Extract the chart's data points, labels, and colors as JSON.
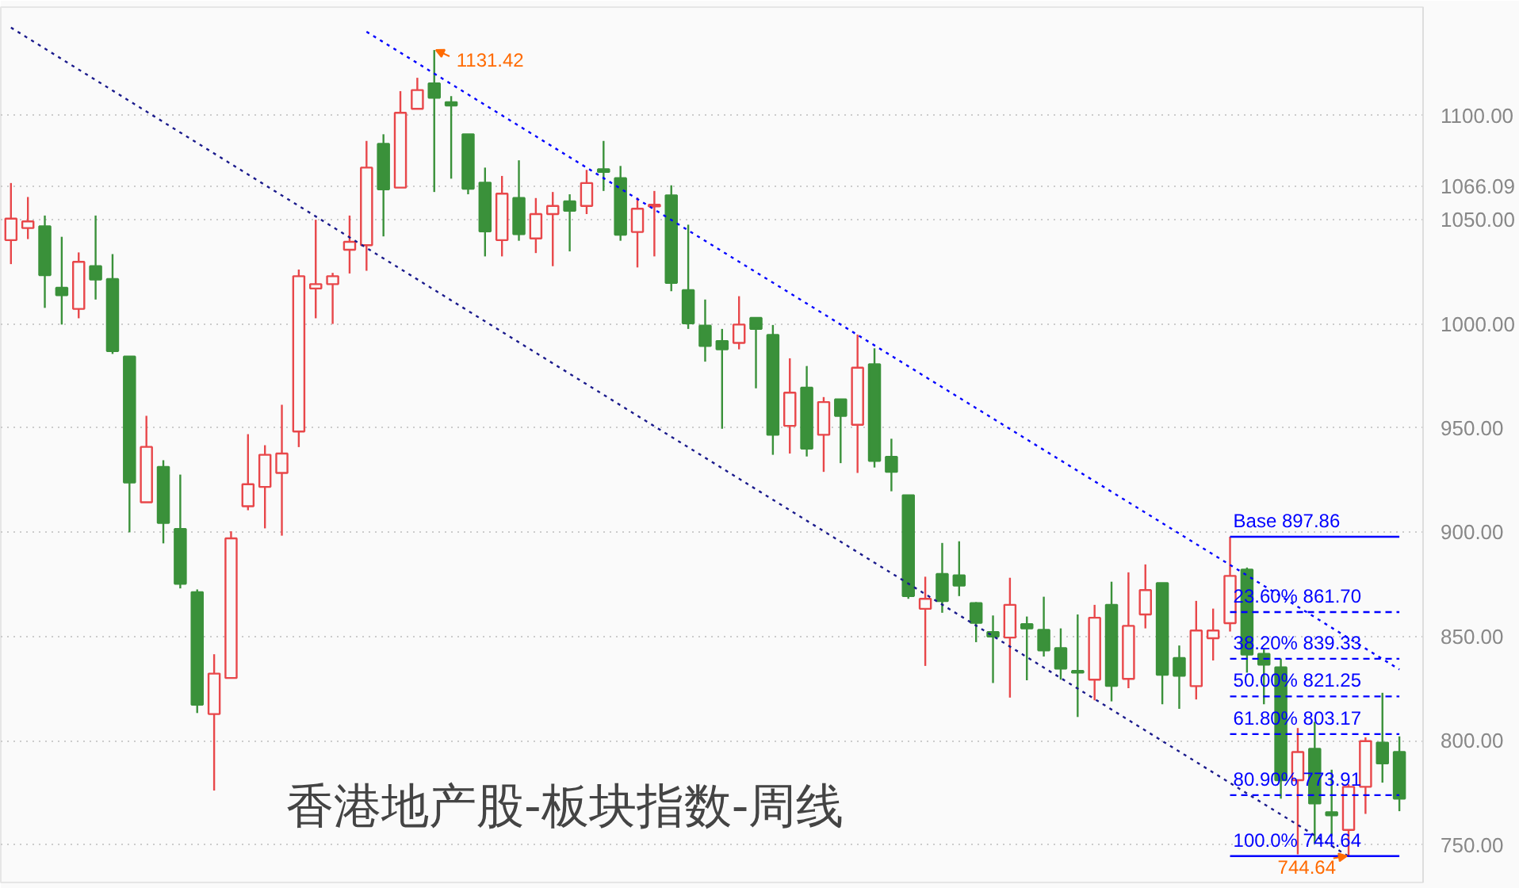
{
  "chart_data": {
    "type": "candlestick",
    "title": "香港地产股-板块指数-周线",
    "categories": [
      null,
      null,
      null,
      null,
      null,
      null,
      null,
      null,
      null,
      null,
      null,
      null,
      null,
      null,
      null,
      null,
      null,
      null,
      null,
      null,
      null,
      null,
      null,
      null,
      null,
      null,
      null,
      null,
      null,
      null,
      null,
      null,
      null,
      null,
      null,
      null,
      null,
      null,
      null,
      null,
      null,
      null,
      null,
      null,
      null,
      null,
      null,
      null,
      null,
      null,
      null,
      null,
      null,
      null,
      null,
      null,
      null,
      null,
      null,
      null,
      null,
      null,
      null,
      null,
      null,
      null,
      null,
      null,
      null,
      null,
      null,
      null,
      null,
      null,
      null,
      null,
      null,
      null,
      null,
      null,
      null,
      null,
      null
    ],
    "value_labels": [
      null,
      null,
      null,
      null,
      null,
      null,
      null,
      null,
      null,
      null,
      null,
      null,
      null,
      null,
      null,
      null,
      null,
      null,
      null,
      null,
      null,
      null,
      null,
      null,
      null,
      "1131.42",
      null,
      null,
      null,
      null,
      null,
      null,
      null,
      null,
      null,
      null,
      null,
      null,
      null,
      null,
      null,
      null,
      null,
      null,
      null,
      null,
      null,
      null,
      null,
      null,
      null,
      null,
      null,
      null,
      null,
      null,
      null,
      null,
      null,
      null,
      null,
      null,
      null,
      null,
      null,
      null,
      null,
      null,
      null,
      null,
      null,
      null,
      null,
      null,
      null,
      null,
      null,
      null,
      null,
      "744.64",
      null,
      null,
      null
    ],
    "ohlc": [
      [
        1040.2,
        1067.6,
        1028.7,
        1050.5
      ],
      [
        1046,
        1060.9,
        1040.7,
        1049.2
      ],
      [
        1046.8,
        1052,
        1007.7,
        1023.4
      ],
      [
        1017.3,
        1041.8,
        999.7,
        1013.8
      ],
      [
        1007.2,
        1034.3,
        1002.7,
        1029.8
      ],
      [
        1027.7,
        1052,
        1011.7,
        1021.3
      ],
      [
        1021.5,
        1033.5,
        985.6,
        987
      ],
      [
        984.3,
        984.3,
        900,
        923.9
      ],
      [
        914.4,
        955.9,
        914.4,
        941
      ],
      [
        931.4,
        934.6,
        894.7,
        904.5
      ],
      [
        901.6,
        927.7,
        873.1,
        875.3
      ],
      [
        871.3,
        872.6,
        813.3,
        817.3
      ],
      [
        812.8,
        841.5,
        776.1,
        832.2
      ],
      [
        830.1,
        900.5,
        830.1,
        897.1
      ],
      [
        912.5,
        947.1,
        910.6,
        923.1
      ],
      [
        921.8,
        941.8,
        901.9,
        937.2
      ],
      [
        928.5,
        961.2,
        898.4,
        937.8
      ],
      [
        948.4,
        1026.1,
        940.9,
        1022.9
      ],
      [
        1017,
        1050,
        1002.7,
        1019.1
      ],
      [
        1019.1,
        1024.5,
        1000,
        1022.9
      ],
      [
        1035.6,
        1052,
        1024.2,
        1039.4
      ],
      [
        1037.8,
        1087.8,
        1025.5,
        1075
      ],
      [
        1086.4,
        1091,
        1042,
        1064.6
      ],
      [
        1065.4,
        1111.7,
        1065.4,
        1101.3
      ],
      [
        1103.2,
        1118.1,
        1103.2,
        1112.2
      ],
      [
        1115.4,
        1131.42,
        1063.3,
        1108.5
      ],
      [
        1106.4,
        1109.3,
        1069.7,
        1104.8
      ],
      [
        1091,
        1091,
        1062.2,
        1064.9
      ],
      [
        1067.8,
        1075,
        1032.4,
        1044.4
      ],
      [
        1040.2,
        1071,
        1032.4,
        1062.5
      ],
      [
        1060.4,
        1078.5,
        1039.9,
        1043.1
      ],
      [
        1041,
        1060.4,
        1034,
        1052.7
      ],
      [
        1052.7,
        1063.3,
        1027.7,
        1056.6
      ],
      [
        1058.8,
        1062.2,
        1034.8,
        1054.3
      ],
      [
        1056.6,
        1073.9,
        1052.7,
        1067.6
      ],
      [
        1074.2,
        1087.8,
        1063.8,
        1072.9
      ],
      [
        1069.9,
        1075.8,
        1039.9,
        1042.8
      ],
      [
        1044.1,
        1060.6,
        1027.1,
        1055.3
      ],
      [
        1056.4,
        1063.8,
        1032.4,
        1057.2
      ],
      [
        1061.7,
        1066.5,
        1015.7,
        1019.7
      ],
      [
        1016.2,
        1047.6,
        997.6,
        1000.3
      ],
      [
        999.2,
        1011.7,
        981.9,
        989.4
      ],
      [
        991.8,
        997.6,
        949.7,
        987.8
      ],
      [
        990.9,
        1013.3,
        987.8,
        999.7
      ],
      [
        1002.9,
        1002.9,
        969.1,
        997.6
      ],
      [
        994.7,
        999.5,
        937.2,
        946.8
      ],
      [
        951.1,
        983.5,
        937.8,
        967
      ],
      [
        969.4,
        979.8,
        936.4,
        940.2
      ],
      [
        946.8,
        964.9,
        929,
        962.5
      ],
      [
        963.8,
        963.8,
        933.2,
        955.9
      ],
      [
        951.6,
        994.9,
        928.5,
        979
      ],
      [
        980.6,
        988.3,
        931.1,
        934.3
      ],
      [
        936.2,
        944.9,
        919.7,
        929
      ],
      [
        917.8,
        917.8,
        868.1,
        869.4
      ],
      [
        863.3,
        878.7,
        835.9,
        868.1
      ],
      [
        880,
        894.9,
        861.4,
        867
      ],
      [
        879.3,
        895.7,
        869.4,
        874.5
      ],
      [
        866,
        866.5,
        847.3,
        856.6
      ],
      [
        852.1,
        860.1,
        827.7,
        850
      ],
      [
        849.5,
        878.2,
        820.7,
        865.2
      ],
      [
        855.9,
        859.6,
        829,
        853.9
      ],
      [
        853.2,
        869.1,
        840.4,
        843.4
      ],
      [
        844.4,
        853.9,
        829.3,
        834.6
      ],
      [
        833.5,
        860.6,
        811.4,
        832.7
      ],
      [
        829.3,
        865.2,
        819.4,
        859
      ],
      [
        865.2,
        876.3,
        818.9,
        826.3
      ],
      [
        829.7,
        880.8,
        825.2,
        855.1
      ],
      [
        860.6,
        884.6,
        853.9,
        872.3
      ],
      [
        875.6,
        875.6,
        817.5,
        831.7
      ],
      [
        839.7,
        845.7,
        815.3,
        831.2
      ],
      [
        826.2,
        867.1,
        819.8,
        852.9
      ],
      [
        849.2,
        863.4,
        838.5,
        852.9
      ],
      [
        856.4,
        897.86,
        852.4,
        879.1
      ],
      [
        882.1,
        883.1,
        832.7,
        841.4
      ],
      [
        841.7,
        844.4,
        817.5,
        836.5
      ],
      [
        835.2,
        839.4,
        772.2,
        781.1
      ],
      [
        781.1,
        806.1,
        745.5,
        794.6
      ],
      [
        796.1,
        809.1,
        750.5,
        769.9
      ],
      [
        765.7,
        786.1,
        754.2,
        764.2
      ],
      [
        757.2,
        779.1,
        744.64,
        777.9
      ],
      [
        777.9,
        801.6,
        764.9,
        799.8
      ],
      [
        799.1,
        823,
        779.9,
        789.1
      ],
      [
        794.6,
        802.1,
        766.2,
        772.2
      ]
    ],
    "colors": [
      "#e8474a",
      "#e8474a",
      "#3a913a",
      "#3a913a",
      "#e8474a",
      "#3a913a",
      "#3a913a",
      "#3a913a",
      "#e8474a",
      "#3a913a",
      "#3a913a",
      "#3a913a",
      "#e8474a",
      "#e8474a",
      "#e8474a",
      "#e8474a",
      "#e8474a",
      "#e8474a",
      "#e8474a",
      "#e8474a",
      "#e8474a",
      "#e8474a",
      "#3a913a",
      "#e8474a",
      "#e8474a",
      "#3a913a",
      "#3a913a",
      "#3a913a",
      "#3a913a",
      "#e8474a",
      "#3a913a",
      "#e8474a",
      "#e8474a",
      "#3a913a",
      "#e8474a",
      "#3a913a",
      "#3a913a",
      "#e8474a",
      "#e8474a",
      "#3a913a",
      "#3a913a",
      "#3a913a",
      "#3a913a",
      "#e8474a",
      "#3a913a",
      "#3a913a",
      "#e8474a",
      "#3a913a",
      "#e8474a",
      "#3a913a",
      "#e8474a",
      "#3a913a",
      "#3a913a",
      "#3a913a",
      "#e8474a",
      "#3a913a",
      "#3a913a",
      "#3a913a",
      "#3a913a",
      "#e8474a",
      "#3a913a",
      "#3a913a",
      "#3a913a",
      "#3a913a",
      "#e8474a",
      "#3a913a",
      "#e8474a",
      "#e8474a",
      "#3a913a",
      "#3a913a",
      "#e8474a",
      "#e8474a",
      "#e8474a",
      "#3a913a",
      "#3a913a",
      "#3a913a",
      "#e8474a",
      "#3a913a",
      "#3a913a",
      "#e8474a",
      "#e8474a",
      "#3a913a",
      "#3a913a"
    ],
    "series": [
      {
        "type": "line",
        "values": [
          null,
          null,
          null,
          null,
          null,
          null,
          null,
          null,
          null,
          null,
          null,
          null,
          null,
          null,
          null,
          null,
          null,
          null,
          null,
          null,
          null,
          1140.2,
          null,
          null,
          null,
          null,
          null,
          null,
          null,
          null,
          null,
          null,
          null,
          null,
          null,
          null,
          null,
          null,
          null,
          null,
          null,
          null,
          null,
          null,
          null,
          null,
          null,
          null,
          null,
          null,
          null,
          null,
          null,
          null,
          null,
          null,
          null,
          null,
          null,
          null,
          null,
          null,
          null,
          null,
          null,
          null,
          null,
          null,
          null,
          null,
          null,
          null,
          null,
          null,
          null,
          null,
          null,
          null,
          null,
          null,
          null,
          null,
          834.2
        ],
        "color": "#0000ff",
        "line_style": "dotted"
      },
      {
        "type": "line",
        "values": [
          1142.2,
          null,
          null,
          null,
          null,
          null,
          null,
          null,
          null,
          null,
          null,
          null,
          null,
          null,
          null,
          null,
          null,
          null,
          null,
          null,
          null,
          null,
          null,
          null,
          null,
          null,
          null,
          null,
          null,
          null,
          null,
          null,
          null,
          null,
          null,
          null,
          null,
          null,
          null,
          null,
          null,
          null,
          null,
          null,
          null,
          null,
          null,
          null,
          null,
          null,
          null,
          null,
          null,
          null,
          null,
          null,
          null,
          null,
          null,
          null,
          null,
          null,
          null,
          null,
          null,
          null,
          null,
          null,
          null,
          null,
          null,
          null,
          null,
          null,
          null,
          null,
          null,
          null,
          null,
          744.5,
          null,
          null,
          null
        ],
        "color": "#1a1a8c",
        "line_style": "dotted"
      },
      {
        "type": "line",
        "name": "Base   897.86",
        "values": [
          null,
          null,
          null,
          null,
          null,
          null,
          null,
          null,
          null,
          null,
          null,
          null,
          null,
          null,
          null,
          null,
          null,
          null,
          null,
          null,
          null,
          null,
          null,
          null,
          null,
          null,
          null,
          null,
          null,
          null,
          null,
          null,
          null,
          null,
          null,
          null,
          null,
          null,
          null,
          null,
          null,
          null,
          null,
          null,
          null,
          null,
          null,
          null,
          null,
          null,
          null,
          null,
          null,
          null,
          null,
          null,
          null,
          null,
          null,
          null,
          null,
          null,
          null,
          null,
          null,
          null,
          null,
          null,
          null,
          null,
          null,
          null,
          897.86,
          null,
          null,
          null,
          null,
          null,
          null,
          null,
          null,
          null,
          897.86
        ],
        "color": "#0000ff",
        "line_style": "solid"
      },
      {
        "type": "line",
        "name": "23.60% 861.70",
        "values": [
          null,
          null,
          null,
          null,
          null,
          null,
          null,
          null,
          null,
          null,
          null,
          null,
          null,
          null,
          null,
          null,
          null,
          null,
          null,
          null,
          null,
          null,
          null,
          null,
          null,
          null,
          null,
          null,
          null,
          null,
          null,
          null,
          null,
          null,
          null,
          null,
          null,
          null,
          null,
          null,
          null,
          null,
          null,
          null,
          null,
          null,
          null,
          null,
          null,
          null,
          null,
          null,
          null,
          null,
          null,
          null,
          null,
          null,
          null,
          null,
          null,
          null,
          null,
          null,
          null,
          null,
          null,
          null,
          null,
          null,
          null,
          null,
          861.7,
          null,
          null,
          null,
          null,
          null,
          null,
          null,
          null,
          null,
          861.7
        ],
        "color": "#0000ff",
        "line_style": "dashed"
      },
      {
        "type": "line",
        "name": "38.20% 839.33",
        "values": [
          null,
          null,
          null,
          null,
          null,
          null,
          null,
          null,
          null,
          null,
          null,
          null,
          null,
          null,
          null,
          null,
          null,
          null,
          null,
          null,
          null,
          null,
          null,
          null,
          null,
          null,
          null,
          null,
          null,
          null,
          null,
          null,
          null,
          null,
          null,
          null,
          null,
          null,
          null,
          null,
          null,
          null,
          null,
          null,
          null,
          null,
          null,
          null,
          null,
          null,
          null,
          null,
          null,
          null,
          null,
          null,
          null,
          null,
          null,
          null,
          null,
          null,
          null,
          null,
          null,
          null,
          null,
          null,
          null,
          null,
          null,
          null,
          839.33,
          null,
          null,
          null,
          null,
          null,
          null,
          null,
          null,
          null,
          839.33
        ],
        "color": "#0000ff",
        "line_style": "dashed"
      },
      {
        "type": "line",
        "name": "50.00% 821.25",
        "values": [
          null,
          null,
          null,
          null,
          null,
          null,
          null,
          null,
          null,
          null,
          null,
          null,
          null,
          null,
          null,
          null,
          null,
          null,
          null,
          null,
          null,
          null,
          null,
          null,
          null,
          null,
          null,
          null,
          null,
          null,
          null,
          null,
          null,
          null,
          null,
          null,
          null,
          null,
          null,
          null,
          null,
          null,
          null,
          null,
          null,
          null,
          null,
          null,
          null,
          null,
          null,
          null,
          null,
          null,
          null,
          null,
          null,
          null,
          null,
          null,
          null,
          null,
          null,
          null,
          null,
          null,
          null,
          null,
          null,
          null,
          null,
          null,
          821.25,
          null,
          null,
          null,
          null,
          null,
          null,
          null,
          null,
          null,
          821.25
        ],
        "color": "#0000ff",
        "line_style": "dashed"
      },
      {
        "type": "line",
        "name": "61.80% 803.17",
        "values": [
          null,
          null,
          null,
          null,
          null,
          null,
          null,
          null,
          null,
          null,
          null,
          null,
          null,
          null,
          null,
          null,
          null,
          null,
          null,
          null,
          null,
          null,
          null,
          null,
          null,
          null,
          null,
          null,
          null,
          null,
          null,
          null,
          null,
          null,
          null,
          null,
          null,
          null,
          null,
          null,
          null,
          null,
          null,
          null,
          null,
          null,
          null,
          null,
          null,
          null,
          null,
          null,
          null,
          null,
          null,
          null,
          null,
          null,
          null,
          null,
          null,
          null,
          null,
          null,
          null,
          null,
          null,
          null,
          null,
          null,
          null,
          null,
          803.17,
          null,
          null,
          null,
          null,
          null,
          null,
          null,
          null,
          null,
          803.17
        ],
        "color": "#0000ff",
        "line_style": "dashed"
      },
      {
        "type": "line",
        "name": "80.90% 773.91",
        "values": [
          null,
          null,
          null,
          null,
          null,
          null,
          null,
          null,
          null,
          null,
          null,
          null,
          null,
          null,
          null,
          null,
          null,
          null,
          null,
          null,
          null,
          null,
          null,
          null,
          null,
          null,
          null,
          null,
          null,
          null,
          null,
          null,
          null,
          null,
          null,
          null,
          null,
          null,
          null,
          null,
          null,
          null,
          null,
          null,
          null,
          null,
          null,
          null,
          null,
          null,
          null,
          null,
          null,
          null,
          null,
          null,
          null,
          null,
          null,
          null,
          null,
          null,
          null,
          null,
          null,
          null,
          null,
          null,
          null,
          null,
          null,
          null,
          773.91,
          null,
          null,
          null,
          null,
          null,
          null,
          null,
          null,
          null,
          773.91
        ],
        "color": "#0000ff",
        "line_style": "dashed"
      },
      {
        "type": "line",
        "name": "100.0% 744.64",
        "values": [
          null,
          null,
          null,
          null,
          null,
          null,
          null,
          null,
          null,
          null,
          null,
          null,
          null,
          null,
          null,
          null,
          null,
          null,
          null,
          null,
          null,
          null,
          null,
          null,
          null,
          null,
          null,
          null,
          null,
          null,
          null,
          null,
          null,
          null,
          null,
          null,
          null,
          null,
          null,
          null,
          null,
          null,
          null,
          null,
          null,
          null,
          null,
          null,
          null,
          null,
          null,
          null,
          null,
          null,
          null,
          null,
          null,
          null,
          null,
          null,
          null,
          null,
          null,
          null,
          null,
          null,
          null,
          null,
          null,
          null,
          null,
          null,
          744.64,
          null,
          null,
          null,
          null,
          null,
          null,
          null,
          null,
          null,
          744.64
        ],
        "color": "#0000ff",
        "line_style": "solid"
      }
    ],
    "ylim": [
      732,
      1152
    ],
    "yticks": [
      {
        "value": 750,
        "label": "750.00"
      },
      {
        "value": 800,
        "label": "800.00"
      },
      {
        "value": 850,
        "label": "850.00"
      },
      {
        "value": 900,
        "label": "900.00"
      },
      {
        "value": 950,
        "label": "950.00"
      },
      {
        "value": 1000,
        "label": "1000.00"
      },
      {
        "value": 1050,
        "label": "1050.00"
      },
      {
        "value": 1066.09,
        "label": "1066.09"
      },
      {
        "value": 1100,
        "label": "1100.00"
      }
    ],
    "grid": "y",
    "tick_labels": "y"
  }
}
